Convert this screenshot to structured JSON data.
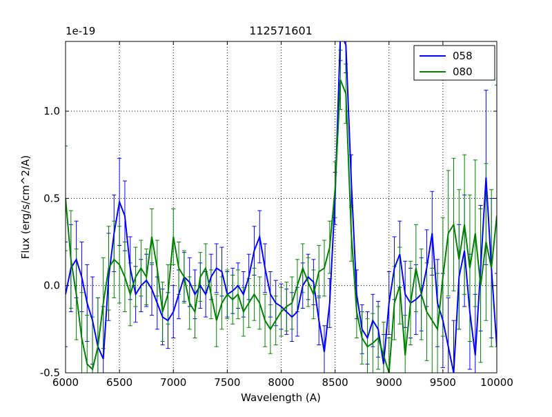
{
  "chart_data": {
    "type": "line",
    "title": "112571601",
    "xlabel": "Wavelength (A)",
    "ylabel": "Flux (erg/s/cm^2/A)",
    "y_offset": "1e-19",
    "grid": true,
    "legend_position": "upper right",
    "xlim": [
      6000,
      10000
    ],
    "ylim": [
      -0.5,
      1.4
    ],
    "x_ticks": [
      6000,
      6500,
      7000,
      7500,
      8000,
      8500,
      9000,
      9500,
      10000
    ],
    "x_tick_labels": [
      "6000",
      "6500",
      "7000",
      "7500",
      "8000",
      "8500",
      "9000",
      "9500",
      "10000"
    ],
    "y_ticks": [
      -0.5,
      0.0,
      0.5,
      1.0
    ],
    "y_tick_labels": [
      "-0.5",
      "0.0",
      "0.5",
      "1.0"
    ],
    "x": [
      6000,
      6050,
      6100,
      6150,
      6200,
      6250,
      6300,
      6350,
      6400,
      6450,
      6500,
      6550,
      6600,
      6650,
      6700,
      6750,
      6800,
      6850,
      6900,
      6950,
      7000,
      7050,
      7100,
      7150,
      7200,
      7250,
      7300,
      7350,
      7400,
      7450,
      7500,
      7550,
      7600,
      7650,
      7700,
      7750,
      7800,
      7850,
      7900,
      7950,
      8000,
      8050,
      8100,
      8150,
      8200,
      8250,
      8300,
      8350,
      8400,
      8450,
      8500,
      8550,
      8600,
      8650,
      8700,
      8750,
      8800,
      8850,
      8900,
      8950,
      9000,
      9050,
      9100,
      9150,
      9200,
      9250,
      9300,
      9350,
      9400,
      9450,
      9500,
      9550,
      9600,
      9650,
      9700,
      9750,
      9800,
      9850,
      9900,
      9950,
      10000
    ],
    "series": [
      {
        "name": "058",
        "color": "#0000ff",
        "values": [
          -0.05,
          0.1,
          0.15,
          0.05,
          -0.1,
          -0.2,
          -0.35,
          -0.42,
          0.05,
          0.3,
          0.48,
          0.4,
          0.1,
          -0.05,
          0.0,
          0.03,
          -0.02,
          -0.1,
          -0.18,
          -0.2,
          -0.15,
          -0.05,
          0.05,
          0.02,
          -0.05,
          0.0,
          -0.05,
          0.05,
          0.1,
          0.08,
          -0.05,
          -0.03,
          0.0,
          -0.05,
          0.05,
          0.2,
          0.28,
          0.1,
          -0.05,
          -0.1,
          -0.12,
          -0.15,
          -0.18,
          -0.15,
          0.0,
          0.05,
          0.02,
          -0.2,
          -0.38,
          -0.1,
          0.5,
          1.45,
          1.38,
          0.6,
          -0.05,
          -0.25,
          -0.3,
          -0.2,
          -0.25,
          -0.45,
          -0.1,
          0.1,
          0.18,
          -0.05,
          -0.1,
          -0.08,
          -0.05,
          0.1,
          0.3,
          -0.1,
          -0.2,
          -0.35,
          -0.5,
          0.05,
          0.2,
          -0.15,
          -0.4,
          0.1,
          0.62,
          0.1,
          -0.35
        ],
        "errors": [
          0.3,
          0.25,
          0.22,
          0.2,
          0.22,
          0.25,
          0.28,
          0.3,
          0.25,
          0.22,
          0.25,
          0.2,
          0.18,
          0.16,
          0.15,
          0.15,
          0.15,
          0.15,
          0.16,
          0.16,
          0.15,
          0.14,
          0.14,
          0.14,
          0.14,
          0.13,
          0.13,
          0.13,
          0.14,
          0.14,
          0.13,
          0.13,
          0.13,
          0.13,
          0.13,
          0.14,
          0.15,
          0.14,
          0.13,
          0.13,
          0.13,
          0.13,
          0.14,
          0.14,
          0.13,
          0.13,
          0.13,
          0.14,
          0.15,
          0.14,
          0.15,
          0.16,
          0.16,
          0.15,
          0.14,
          0.14,
          0.15,
          0.15,
          0.16,
          0.17,
          0.18,
          0.18,
          0.19,
          0.19,
          0.2,
          0.2,
          0.21,
          0.22,
          0.24,
          0.25,
          0.27,
          0.28,
          0.3,
          0.3,
          0.32,
          0.33,
          0.35,
          0.36,
          0.5,
          0.4,
          0.42
        ]
      },
      {
        "name": "080",
        "color": "#008000",
        "values": [
          0.5,
          0.15,
          -0.05,
          -0.3,
          -0.45,
          -0.48,
          -0.35,
          -0.1,
          0.1,
          0.15,
          0.12,
          0.05,
          -0.05,
          0.05,
          0.1,
          0.05,
          0.28,
          0.1,
          -0.15,
          -0.05,
          0.28,
          0.1,
          0.05,
          -0.1,
          -0.15,
          0.05,
          0.1,
          -0.05,
          -0.2,
          -0.1,
          -0.05,
          -0.08,
          -0.05,
          -0.15,
          -0.1,
          -0.05,
          -0.1,
          -0.2,
          -0.25,
          -0.2,
          -0.15,
          -0.12,
          -0.1,
          0.0,
          0.1,
          0.02,
          -0.05,
          0.08,
          0.1,
          0.22,
          0.55,
          1.18,
          1.1,
          0.3,
          -0.15,
          -0.3,
          -0.35,
          -0.33,
          -0.3,
          -0.4,
          -0.5,
          -0.1,
          0.0,
          -0.4,
          -0.1,
          0.1,
          -0.05,
          -0.15,
          -0.2,
          -0.25,
          0.05,
          0.3,
          0.35,
          0.15,
          0.35,
          0.1,
          0.3,
          0.0,
          0.25,
          0.1,
          0.4
        ],
        "errors": [
          0.3,
          0.28,
          0.26,
          0.26,
          0.28,
          0.3,
          0.28,
          0.26,
          0.24,
          0.22,
          0.22,
          0.2,
          0.18,
          0.17,
          0.16,
          0.16,
          0.16,
          0.16,
          0.17,
          0.17,
          0.16,
          0.15,
          0.15,
          0.15,
          0.15,
          0.14,
          0.14,
          0.14,
          0.15,
          0.15,
          0.14,
          0.14,
          0.14,
          0.14,
          0.14,
          0.15,
          0.15,
          0.15,
          0.14,
          0.14,
          0.14,
          0.14,
          0.15,
          0.15,
          0.14,
          0.14,
          0.14,
          0.15,
          0.16,
          0.15,
          0.16,
          0.17,
          0.17,
          0.16,
          0.15,
          0.15,
          0.16,
          0.17,
          0.18,
          0.19,
          0.2,
          0.21,
          0.22,
          0.23,
          0.24,
          0.25,
          0.26,
          0.28,
          0.3,
          0.32,
          0.34,
          0.36,
          0.38,
          0.4,
          0.4,
          0.42,
          0.42,
          0.44,
          0.45,
          0.45,
          0.75
        ]
      }
    ]
  }
}
